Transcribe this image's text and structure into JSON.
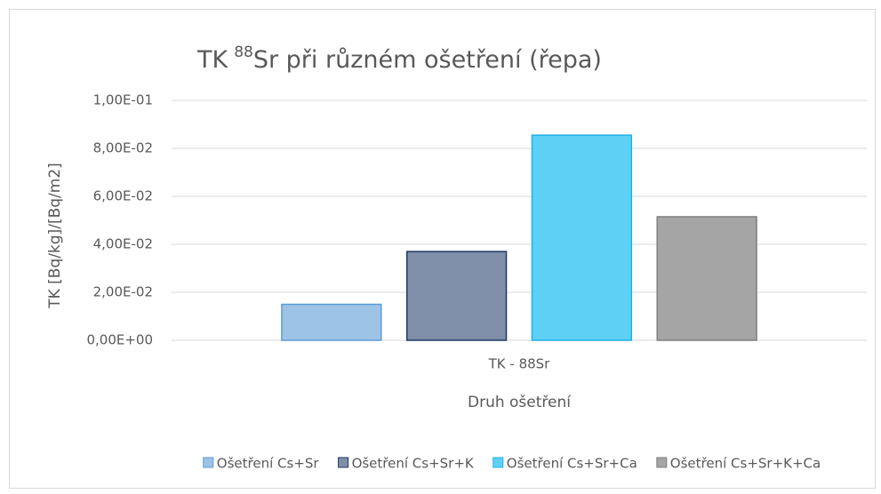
{
  "chart_data": {
    "type": "bar",
    "title": [
      "TK",
      "88",
      "Sr při různém ošetření (řepa)"
    ],
    "categories": [
      "TK - 88Sr"
    ],
    "series": [
      {
        "name": "Ošetření Cs+Sr",
        "color": "#9dc3e6",
        "edgecolor": "#5b9bd5",
        "values": [
          0.015
        ]
      },
      {
        "name": "Ošetření Cs+Sr+K",
        "color": "#7f8fa9",
        "edgecolor": "#203864",
        "values": [
          0.037
        ]
      },
      {
        "name": "Ošetření Cs+Sr+Ca",
        "color": "#5fd0f5",
        "edgecolor": "#1fb1e6",
        "values": [
          0.0855
        ]
      },
      {
        "name": "Ošetření Cs+Sr+K+Ca",
        "color": "#a5a5a5",
        "edgecolor": "#7f7f7f",
        "values": [
          0.0515
        ]
      }
    ],
    "xlabel": "Druh ošetření",
    "ylabel": "TK [Bq/kg]/[Bq/m2]",
    "ylim": [
      0,
      0.1
    ],
    "yticks": [
      {
        "value": 0,
        "label": "0,00E+00"
      },
      {
        "value": 0.02,
        "label": "2,00E-02"
      },
      {
        "value": 0.04,
        "label": "4,00E-02"
      },
      {
        "value": 0.06,
        "label": "6,00E-02"
      },
      {
        "value": 0.08,
        "label": "8,00E-02"
      },
      {
        "value": 0.1,
        "label": "1,00E-01"
      }
    ],
    "grid": true,
    "legend": "bottom"
  }
}
